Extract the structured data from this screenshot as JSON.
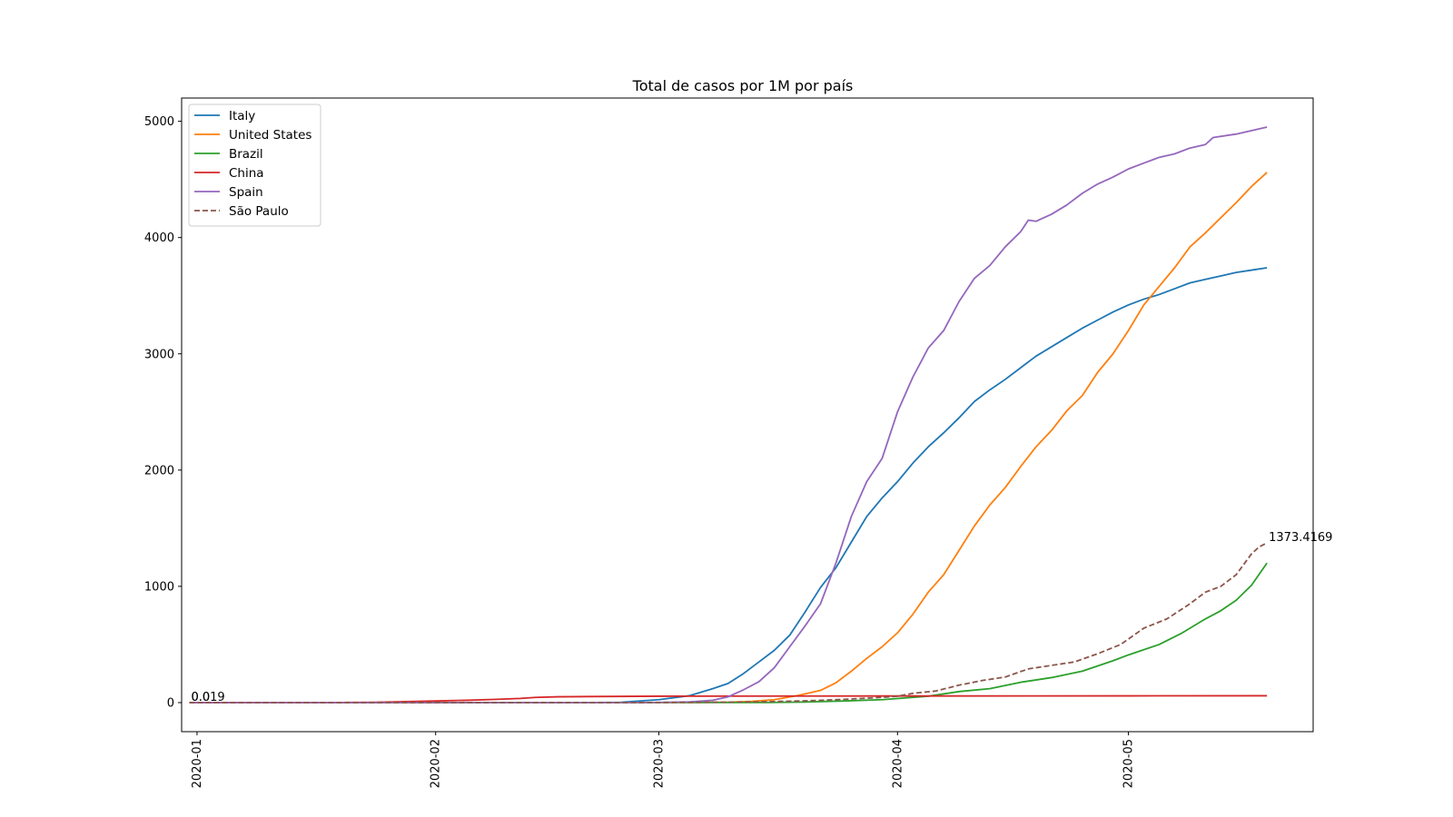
{
  "chart_data": {
    "type": "line",
    "title": "Total de casos por 1M por país",
    "xlabel": "",
    "ylabel": "",
    "x_type": "date",
    "xlim": [
      "2019-12-30",
      "2020-05-25"
    ],
    "ylim": [
      -250,
      5200
    ],
    "x_ticks": [
      "2020-01-01",
      "2020-02-01",
      "2020-03-01",
      "2020-04-01",
      "2020-05-01"
    ],
    "x_tick_labels": [
      "2020-01",
      "2020-02",
      "2020-03",
      "2020-04",
      "2020-05"
    ],
    "y_ticks": [
      0,
      1000,
      2000,
      3000,
      4000,
      5000
    ],
    "y_tick_labels": [
      "0",
      "1000",
      "2000",
      "3000",
      "4000",
      "5000"
    ],
    "grid": false,
    "legend_position": "top-left",
    "annotations": [
      {
        "text": "0.0",
        "x": "2019-12-31",
        "y": 0
      },
      {
        "text": "0.019",
        "x": "2019-12-31",
        "y": 0
      },
      {
        "text": "1373.4169",
        "x": "2020-05-19",
        "y": 1373.4169
      }
    ],
    "series": [
      {
        "name": "Italy",
        "color": "#1f77b4",
        "dash": "solid",
        "points": [
          [
            "2019-12-31",
            0
          ],
          [
            "2020-02-20",
            0
          ],
          [
            "2020-02-25",
            3
          ],
          [
            "2020-03-01",
            25
          ],
          [
            "2020-03-05",
            60
          ],
          [
            "2020-03-08",
            120
          ],
          [
            "2020-03-10",
            165
          ],
          [
            "2020-03-12",
            250
          ],
          [
            "2020-03-14",
            350
          ],
          [
            "2020-03-16",
            450
          ],
          [
            "2020-03-18",
            580
          ],
          [
            "2020-03-20",
            780
          ],
          [
            "2020-03-22",
            990
          ],
          [
            "2020-03-24",
            1160
          ],
          [
            "2020-03-26",
            1380
          ],
          [
            "2020-03-28",
            1600
          ],
          [
            "2020-03-30",
            1760
          ],
          [
            "2020-04-01",
            1900
          ],
          [
            "2020-04-03",
            2060
          ],
          [
            "2020-04-05",
            2200
          ],
          [
            "2020-04-07",
            2320
          ],
          [
            "2020-04-09",
            2450
          ],
          [
            "2020-04-11",
            2590
          ],
          [
            "2020-04-13",
            2690
          ],
          [
            "2020-04-15",
            2780
          ],
          [
            "2020-04-17",
            2880
          ],
          [
            "2020-04-19",
            2980
          ],
          [
            "2020-04-21",
            3060
          ],
          [
            "2020-04-23",
            3140
          ],
          [
            "2020-04-25",
            3220
          ],
          [
            "2020-04-27",
            3290
          ],
          [
            "2020-04-29",
            3360
          ],
          [
            "2020-05-01",
            3420
          ],
          [
            "2020-05-03",
            3470
          ],
          [
            "2020-05-05",
            3510
          ],
          [
            "2020-05-07",
            3560
          ],
          [
            "2020-05-09",
            3610
          ],
          [
            "2020-05-11",
            3640
          ],
          [
            "2020-05-13",
            3670
          ],
          [
            "2020-05-15",
            3700
          ],
          [
            "2020-05-17",
            3720
          ],
          [
            "2020-05-19",
            3740
          ]
        ]
      },
      {
        "name": "United States",
        "color": "#ff7f0e",
        "dash": "solid",
        "points": [
          [
            "2019-12-31",
            0
          ],
          [
            "2020-03-05",
            1
          ],
          [
            "2020-03-10",
            4
          ],
          [
            "2020-03-13",
            10
          ],
          [
            "2020-03-16",
            25
          ],
          [
            "2020-03-19",
            60
          ],
          [
            "2020-03-22",
            105
          ],
          [
            "2020-03-24",
            170
          ],
          [
            "2020-03-26",
            270
          ],
          [
            "2020-03-28",
            380
          ],
          [
            "2020-03-30",
            480
          ],
          [
            "2020-04-01",
            600
          ],
          [
            "2020-04-03",
            760
          ],
          [
            "2020-04-05",
            950
          ],
          [
            "2020-04-07",
            1100
          ],
          [
            "2020-04-09",
            1310
          ],
          [
            "2020-04-11",
            1520
          ],
          [
            "2020-04-13",
            1700
          ],
          [
            "2020-04-15",
            1850
          ],
          [
            "2020-04-17",
            2030
          ],
          [
            "2020-04-19",
            2200
          ],
          [
            "2020-04-21",
            2340
          ],
          [
            "2020-04-23",
            2510
          ],
          [
            "2020-04-25",
            2640
          ],
          [
            "2020-04-27",
            2840
          ],
          [
            "2020-04-29",
            3000
          ],
          [
            "2020-05-01",
            3200
          ],
          [
            "2020-05-03",
            3420
          ],
          [
            "2020-05-05",
            3580
          ],
          [
            "2020-05-07",
            3740
          ],
          [
            "2020-05-09",
            3920
          ],
          [
            "2020-05-11",
            4040
          ],
          [
            "2020-05-13",
            4170
          ],
          [
            "2020-05-15",
            4300
          ],
          [
            "2020-05-17",
            4440
          ],
          [
            "2020-05-19",
            4560
          ]
        ]
      },
      {
        "name": "Brazil",
        "color": "#2ca02c",
        "dash": "solid",
        "points": [
          [
            "2019-12-31",
            0
          ],
          [
            "2020-03-15",
            1
          ],
          [
            "2020-03-20",
            5
          ],
          [
            "2020-03-25",
            14
          ],
          [
            "2020-03-30",
            25
          ],
          [
            "2020-04-01",
            35
          ],
          [
            "2020-04-05",
            55
          ],
          [
            "2020-04-09",
            95
          ],
          [
            "2020-04-13",
            120
          ],
          [
            "2020-04-17",
            175
          ],
          [
            "2020-04-21",
            215
          ],
          [
            "2020-04-25",
            270
          ],
          [
            "2020-04-29",
            360
          ],
          [
            "2020-05-01",
            410
          ],
          [
            "2020-05-05",
            500
          ],
          [
            "2020-05-08",
            600
          ],
          [
            "2020-05-11",
            720
          ],
          [
            "2020-05-13",
            790
          ],
          [
            "2020-05-15",
            880
          ],
          [
            "2020-05-17",
            1010
          ],
          [
            "2020-05-19",
            1200
          ]
        ]
      },
      {
        "name": "China",
        "color": "#d62728",
        "dash": "solid",
        "points": [
          [
            "2019-12-31",
            0
          ],
          [
            "2020-01-20",
            1
          ],
          [
            "2020-01-24",
            3
          ],
          [
            "2020-01-28",
            8
          ],
          [
            "2020-02-01",
            14
          ],
          [
            "2020-02-05",
            20
          ],
          [
            "2020-02-09",
            28
          ],
          [
            "2020-02-12",
            36
          ],
          [
            "2020-02-14",
            45
          ],
          [
            "2020-02-17",
            50
          ],
          [
            "2020-02-21",
            52
          ],
          [
            "2020-03-01",
            55
          ],
          [
            "2020-04-01",
            57
          ],
          [
            "2020-05-01",
            58
          ],
          [
            "2020-05-19",
            59
          ]
        ]
      },
      {
        "name": "Spain",
        "color": "#9467bd",
        "dash": "solid",
        "points": [
          [
            "2019-12-31",
            0
          ],
          [
            "2020-02-25",
            0
          ],
          [
            "2020-03-01",
            2
          ],
          [
            "2020-03-05",
            6
          ],
          [
            "2020-03-08",
            20
          ],
          [
            "2020-03-10",
            50
          ],
          [
            "2020-03-12",
            110
          ],
          [
            "2020-03-14",
            180
          ],
          [
            "2020-03-16",
            300
          ],
          [
            "2020-03-18",
            480
          ],
          [
            "2020-03-20",
            660
          ],
          [
            "2020-03-22",
            850
          ],
          [
            "2020-03-24",
            1200
          ],
          [
            "2020-03-26",
            1600
          ],
          [
            "2020-03-28",
            1900
          ],
          [
            "2020-03-30",
            2100
          ],
          [
            "2020-04-01",
            2500
          ],
          [
            "2020-04-03",
            2800
          ],
          [
            "2020-04-05",
            3050
          ],
          [
            "2020-04-07",
            3200
          ],
          [
            "2020-04-09",
            3450
          ],
          [
            "2020-04-11",
            3650
          ],
          [
            "2020-04-13",
            3760
          ],
          [
            "2020-04-15",
            3920
          ],
          [
            "2020-04-17",
            4050
          ],
          [
            "2020-04-18",
            4150
          ],
          [
            "2020-04-19",
            4140
          ],
          [
            "2020-04-21",
            4200
          ],
          [
            "2020-04-23",
            4280
          ],
          [
            "2020-04-25",
            4380
          ],
          [
            "2020-04-27",
            4460
          ],
          [
            "2020-04-29",
            4520
          ],
          [
            "2020-05-01",
            4590
          ],
          [
            "2020-05-03",
            4640
          ],
          [
            "2020-05-05",
            4690
          ],
          [
            "2020-05-07",
            4720
          ],
          [
            "2020-05-09",
            4770
          ],
          [
            "2020-05-11",
            4800
          ],
          [
            "2020-05-12",
            4860
          ],
          [
            "2020-05-15",
            4890
          ],
          [
            "2020-05-17",
            4920
          ],
          [
            "2020-05-19",
            4950
          ]
        ]
      },
      {
        "name": "São Paulo",
        "color": "#8c564b",
        "dash": "dashed",
        "points": [
          [
            "2019-12-31",
            0
          ],
          [
            "2020-02-26",
            0
          ],
          [
            "2020-03-05",
            2
          ],
          [
            "2020-03-10",
            4
          ],
          [
            "2020-03-15",
            8
          ],
          [
            "2020-03-20",
            15
          ],
          [
            "2020-03-25",
            28
          ],
          [
            "2020-03-30",
            45
          ],
          [
            "2020-04-01",
            55
          ],
          [
            "2020-04-03",
            80
          ],
          [
            "2020-04-06",
            100
          ],
          [
            "2020-04-09",
            150
          ],
          [
            "2020-04-12",
            190
          ],
          [
            "2020-04-15",
            220
          ],
          [
            "2020-04-18",
            290
          ],
          [
            "2020-04-21",
            320
          ],
          [
            "2020-04-24",
            350
          ],
          [
            "2020-04-27",
            420
          ],
          [
            "2020-04-30",
            500
          ],
          [
            "2020-05-03",
            640
          ],
          [
            "2020-05-06",
            720
          ],
          [
            "2020-05-09",
            850
          ],
          [
            "2020-05-11",
            950
          ],
          [
            "2020-05-13",
            1000
          ],
          [
            "2020-05-15",
            1100
          ],
          [
            "2020-05-16",
            1190
          ],
          [
            "2020-05-17",
            1280
          ],
          [
            "2020-05-18",
            1340
          ],
          [
            "2020-05-19",
            1373.4169
          ]
        ]
      }
    ]
  }
}
